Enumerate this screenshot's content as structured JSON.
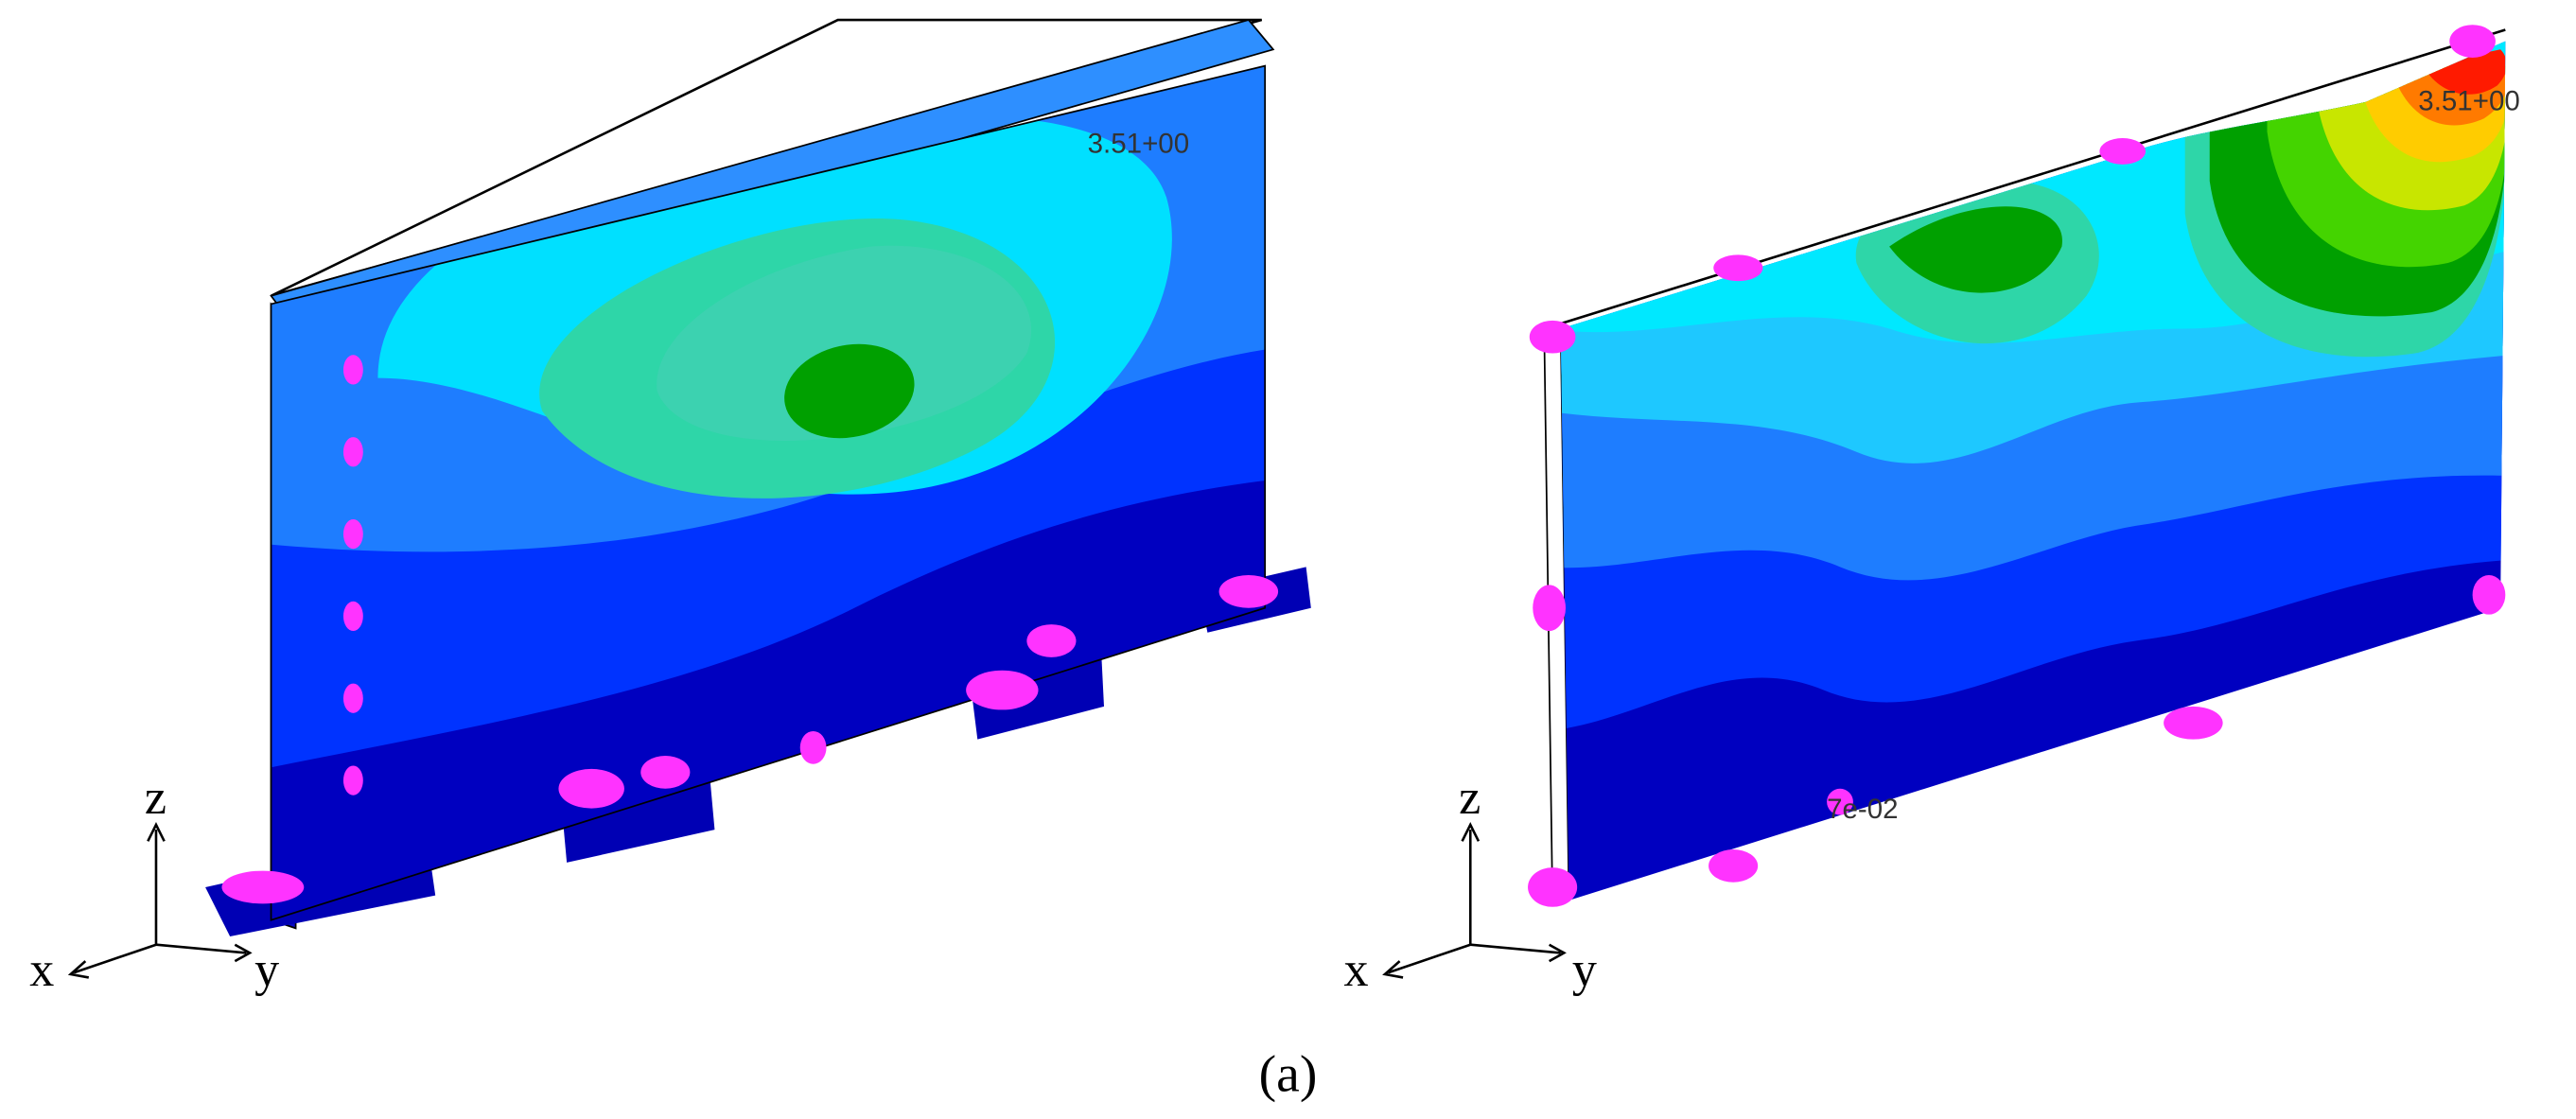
{
  "panels": [
    {
      "max_label": "3.51+00",
      "axes": {
        "z": "z",
        "x": "x",
        "y": "y"
      }
    },
    {
      "max_label": "3.51+00",
      "min_label": "7e-02",
      "axes": {
        "z": "z",
        "x": "x",
        "y": "y"
      }
    }
  ],
  "caption": "(a)"
}
